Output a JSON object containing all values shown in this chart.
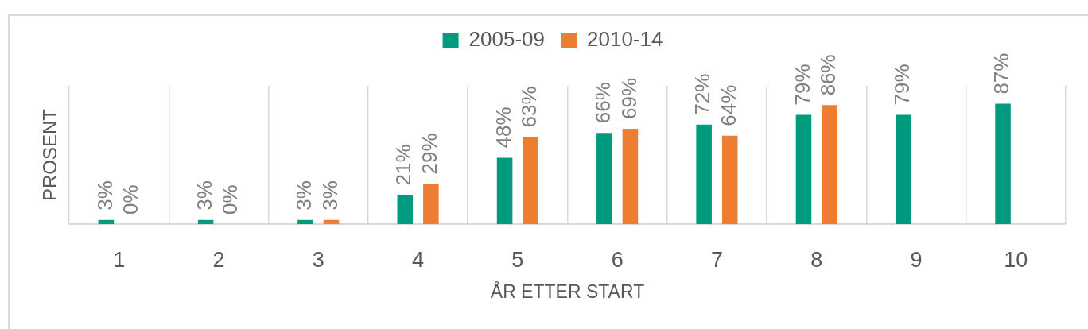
{
  "chart_data": {
    "type": "bar",
    "categories": [
      "1",
      "2",
      "3",
      "4",
      "5",
      "6",
      "7",
      "8",
      "9",
      "10"
    ],
    "series": [
      {
        "name": "2005-09",
        "color": "#009b7f",
        "values": [
          3,
          3,
          3,
          21,
          48,
          66,
          72,
          79,
          79,
          87
        ],
        "value_labels": [
          "3%",
          "3%",
          "3%",
          "21%",
          "48%",
          "66%",
          "72%",
          "79%",
          "79%",
          "87%"
        ]
      },
      {
        "name": "2010-14",
        "color": "#ed7d31",
        "values": [
          0,
          0,
          3,
          29,
          63,
          69,
          64,
          86,
          null,
          null
        ],
        "value_labels": [
          "0%",
          "0%",
          "3%",
          "29%",
          "63%",
          "69%",
          "64%",
          "86%",
          null,
          null
        ]
      }
    ],
    "ylim": [
      0,
      100
    ],
    "xlabel": "ÅR ETTER START",
    "ylabel": "PROSENT",
    "legend": "top",
    "grid": "x",
    "tick_labels": "x"
  }
}
